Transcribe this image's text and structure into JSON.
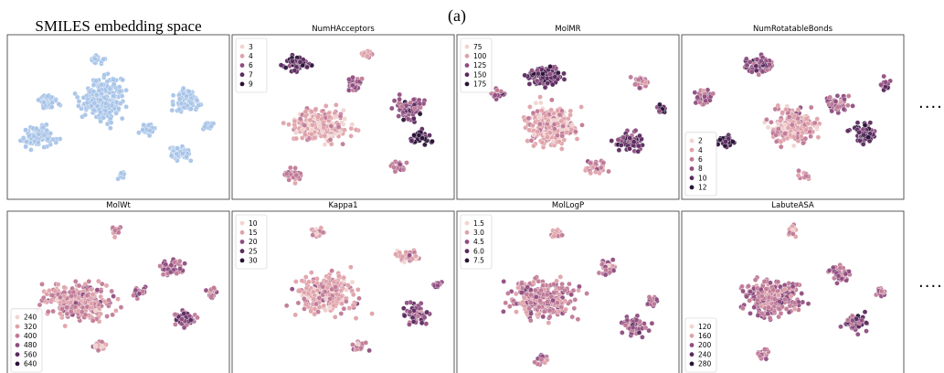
{
  "figure_label": "(a)",
  "continuation": ".....",
  "chart_data": [
    {
      "type": "scatter",
      "title": "SMILES embedding space",
      "color": "#a8c4e8",
      "legend": null
    },
    {
      "type": "scatter",
      "title": "NumHAcceptors",
      "legend_location": "upper-left",
      "legend": [
        "3",
        "4",
        "6",
        "7",
        "9"
      ]
    },
    {
      "type": "scatter",
      "title": "MolMR",
      "legend_location": "upper-left",
      "legend": [
        "75",
        "100",
        "125",
        "150",
        "175"
      ]
    },
    {
      "type": "scatter",
      "title": "NumRotatableBonds",
      "legend_location": "lower-left",
      "legend": [
        "2",
        "4",
        "6",
        "8",
        "10",
        "12"
      ]
    },
    {
      "type": "scatter",
      "title": "MolWt",
      "legend_location": "lower-left",
      "legend": [
        "240",
        "320",
        "400",
        "480",
        "560",
        "640"
      ]
    },
    {
      "type": "scatter",
      "title": "Kappa1",
      "legend_location": "upper-left",
      "legend": [
        "10",
        "15",
        "20",
        "25",
        "30"
      ]
    },
    {
      "type": "scatter",
      "title": "MolLogP",
      "legend_location": "upper-left",
      "legend": [
        "1.5",
        "3.0",
        "4.5",
        "6.0",
        "7.5"
      ]
    },
    {
      "type": "scatter",
      "title": "LabuteASA",
      "legend_location": "lower-left",
      "legend": [
        "120",
        "160",
        "200",
        "240",
        "280"
      ]
    }
  ],
  "colors": {
    "embedding": "#a8c4e8",
    "ramp": [
      "#f0d4d0",
      "#dfa2aa",
      "#c07a97",
      "#8f4d80",
      "#5b2a5f",
      "#2a1238"
    ]
  }
}
